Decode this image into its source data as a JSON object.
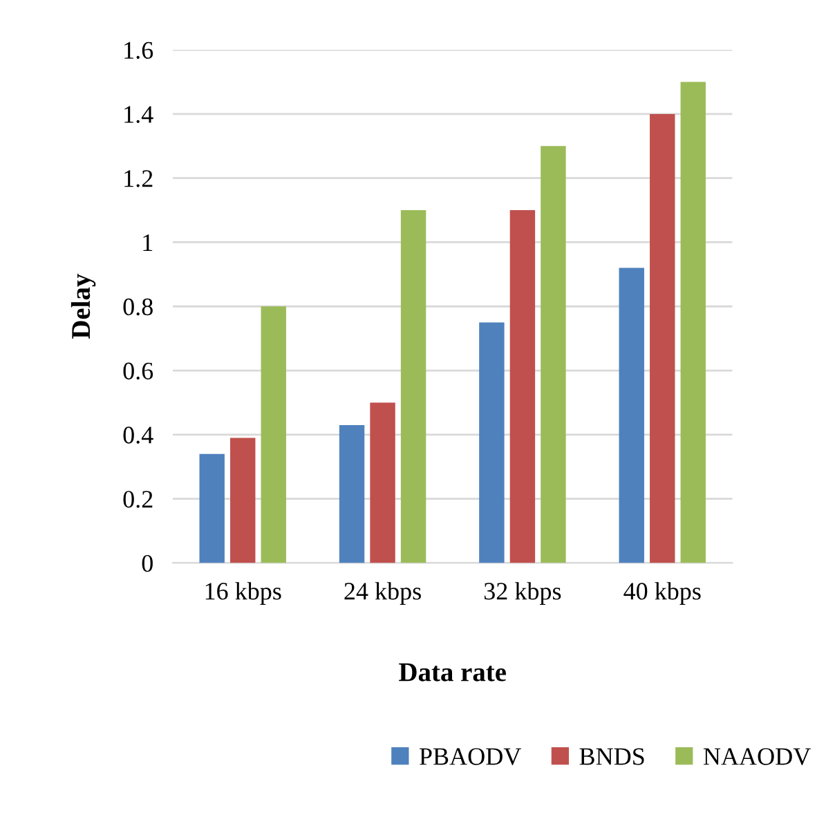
{
  "chart_data": {
    "type": "bar",
    "xlabel": "Data rate",
    "ylabel": "Delay",
    "categories": [
      "16 kbps",
      "24 kbps",
      "32 kbps",
      "40 kbps"
    ],
    "series": [
      {
        "name": "PBAODV",
        "color": "#4f81bd",
        "values": [
          0.34,
          0.43,
          0.75,
          0.92
        ]
      },
      {
        "name": "BNDS",
        "color": "#c0504d",
        "values": [
          0.39,
          0.5,
          1.1,
          1.4
        ]
      },
      {
        "name": "NAAODV",
        "color": "#9bbb59",
        "values": [
          0.8,
          1.1,
          1.3,
          1.5
        ]
      }
    ],
    "ylim": [
      0,
      1.6
    ],
    "yticks": [
      0,
      0.2,
      0.4,
      0.6,
      0.8,
      1,
      1.2,
      1.4,
      1.6
    ],
    "grid": "y",
    "legend": "bottom"
  }
}
